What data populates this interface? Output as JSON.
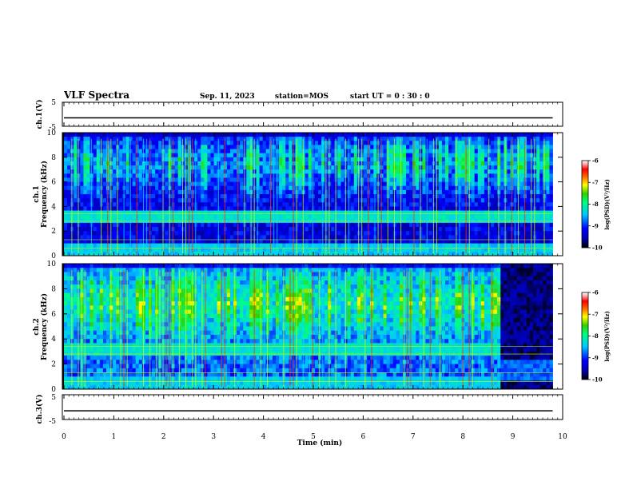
{
  "header": {
    "title": "VLF Spectra",
    "date": "Sep. 11, 2023",
    "station": "station=MOS",
    "start": "start UT =  0 : 30 : 0"
  },
  "chart_data": [
    {
      "type": "line",
      "panel": "ch1-voltage",
      "ylabel": "ch.1(V)",
      "ylim": [
        -5,
        5
      ],
      "yticks": [
        "5",
        "-5"
      ],
      "series": [
        {
          "values_note": "",
          "x": [
            0,
            10
          ],
          "y": [
            -1.5,
            -1.5
          ]
        }
      ]
    },
    {
      "type": "heatmap",
      "panel": "ch1-spectrogram",
      "ylabel": "ch.1 Frequency (kHz)",
      "ylim": [
        0,
        10
      ],
      "yticks": [
        "0",
        "2",
        "4",
        "6",
        "8",
        "10"
      ],
      "colorbar": {
        "label": "log(PSD)(V²/Hz)",
        "ticks": [
          "-6",
          "-7",
          "-8",
          "-9",
          "-10"
        ],
        "range": [
          -10,
          -6
        ]
      },
      "data_extent_min": 9.8
    },
    {
      "type": "heatmap",
      "panel": "ch2-spectrogram",
      "ylabel": "ch.2 Frequency (kHz)",
      "ylim": [
        0,
        10
      ],
      "yticks": [
        "0",
        "2",
        "4",
        "6",
        "8",
        "10"
      ],
      "colorbar": {
        "label": "log(PSD)(V²/Hz)",
        "ticks": [
          "-6",
          "-7",
          "-8",
          "-9",
          "-10"
        ],
        "range": [
          -10,
          -6
        ]
      },
      "quiet_after_min": 8.75,
      "data_extent_min": 9.8
    },
    {
      "type": "line",
      "panel": "ch3-voltage",
      "ylabel": "ch.3(V)",
      "ylim": [
        -5,
        5
      ],
      "yticks": [
        "5",
        "-5"
      ],
      "series": [
        {
          "x": [
            0,
            10
          ],
          "y": [
            -1.5,
            -1.5
          ]
        }
      ]
    }
  ],
  "xaxis": {
    "label": "Time (min)",
    "ticks": [
      "0",
      "1",
      "2",
      "3",
      "4",
      "5",
      "6",
      "7",
      "8",
      "9",
      "10"
    ],
    "range": [
      0,
      10
    ]
  }
}
